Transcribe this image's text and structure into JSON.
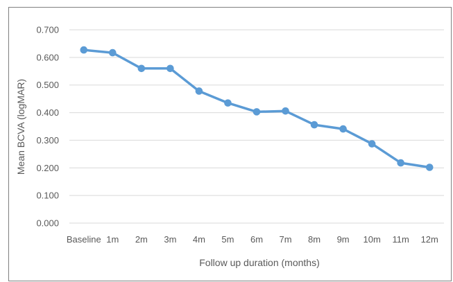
{
  "chart_data": {
    "type": "line",
    "categories": [
      "Baseline",
      "1m",
      "2m",
      "3m",
      "4m",
      "5m",
      "6m",
      "7m",
      "8m",
      "9m",
      "10m",
      "11m",
      "12m"
    ],
    "series": [
      {
        "values": [
          0.627,
          0.617,
          0.56,
          0.56,
          0.478,
          0.435,
          0.403,
          0.406,
          0.356,
          0.341,
          0.287,
          0.218,
          0.202
        ]
      }
    ],
    "y_ticks": [
      "0.000",
      "0.100",
      "0.200",
      "0.300",
      "0.400",
      "0.500",
      "0.600",
      "0.700"
    ],
    "ylim": [
      0,
      0.7
    ],
    "xlabel": "Follow up duration (months)",
    "ylabel": "Mean BCVA (logMAR)",
    "grid": true,
    "legend": "none",
    "colors": {
      "series": "#5b9bd5",
      "grid": "#d9d9d9",
      "text": "#595959",
      "border": "#7f7f7f"
    }
  }
}
